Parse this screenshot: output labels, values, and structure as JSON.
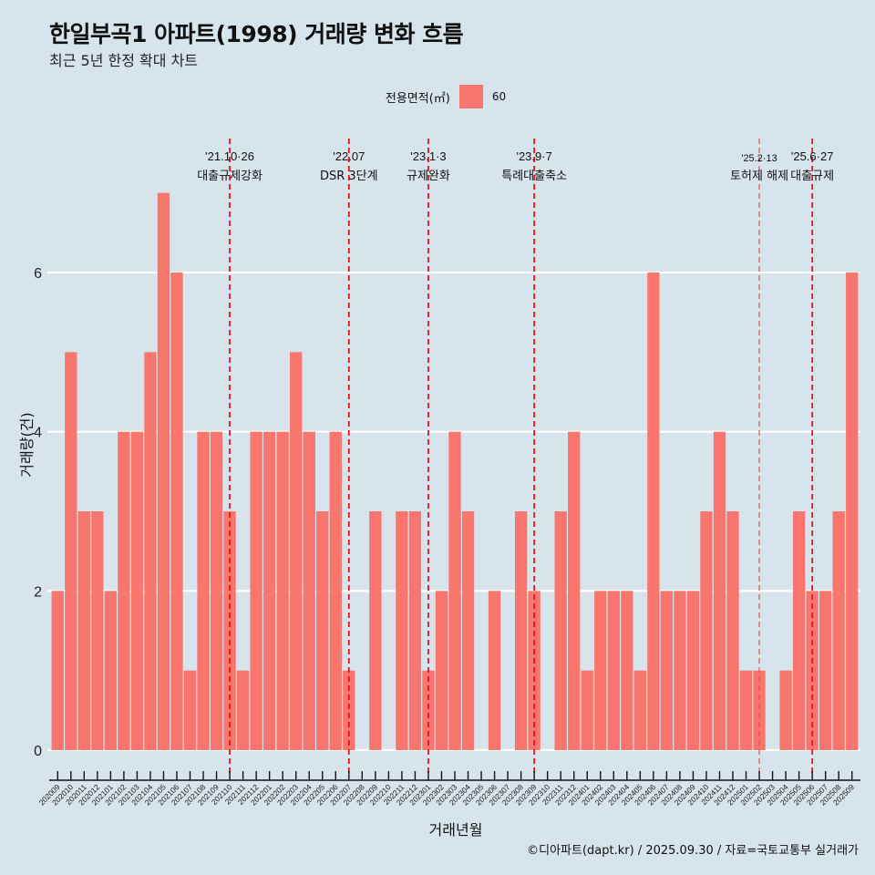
{
  "header": {
    "title": "한일부곡1 아파트(1998) 거래량 변화 흐름",
    "subtitle": "최근 5년 한정 확대 차트"
  },
  "legend": {
    "title": "전용면적(㎡)",
    "items": [
      {
        "label": "60",
        "color": "#f8766d"
      }
    ]
  },
  "caption": "©디아파트(dapt.kr) / 2025.09.30 / 자료=국토교통부 실거래가",
  "chart_data": {
    "type": "bar",
    "title": "한일부곡1 아파트(1998) 거래량 변화 흐름",
    "subtitle": "최근 5년 한정 확대 차트",
    "xlabel": "거래년월",
    "ylabel": "거래량(건)",
    "ylim": [
      0,
      7
    ],
    "yticks": [
      0,
      2,
      4,
      6
    ],
    "grid": true,
    "legend_position": "top",
    "bar_color": "#f8766d",
    "categories": [
      "202009",
      "202010",
      "202011",
      "202012",
      "202101",
      "202102",
      "202103",
      "202104",
      "202105",
      "202106",
      "202107",
      "202108",
      "202109",
      "202110",
      "202111",
      "202112",
      "202201",
      "202202",
      "202203",
      "202204",
      "202205",
      "202206",
      "202207",
      "202208",
      "202209",
      "202210",
      "202211",
      "202212",
      "202301",
      "202302",
      "202303",
      "202304",
      "202305",
      "202306",
      "202307",
      "202308",
      "202309",
      "202310",
      "202311",
      "202312",
      "202401",
      "202402",
      "202403",
      "202404",
      "202405",
      "202406",
      "202407",
      "202408",
      "202409",
      "202410",
      "202411",
      "202412",
      "202501",
      "202502",
      "202503",
      "202504",
      "202505",
      "202506",
      "202507",
      "202508",
      "202509"
    ],
    "series": [
      {
        "name": "60",
        "values": [
          2,
          5,
          3,
          3,
          2,
          4,
          4,
          5,
          7,
          6,
          1,
          4,
          4,
          3,
          1,
          4,
          4,
          4,
          5,
          4,
          3,
          4,
          1,
          0,
          3,
          0,
          3,
          3,
          1,
          2,
          4,
          3,
          0,
          2,
          0,
          3,
          2,
          0,
          3,
          4,
          1,
          2,
          2,
          2,
          1,
          6,
          2,
          2,
          2,
          3,
          4,
          3,
          1,
          1,
          0,
          1,
          3,
          2,
          2,
          3,
          6
        ]
      }
    ],
    "annotations": [
      {
        "category": "202110",
        "date": "'21.10·26",
        "label": "대출규제강화",
        "style": "bold"
      },
      {
        "category": "202207",
        "date": "'22.07",
        "label": "DSR 3단계",
        "style": "bold"
      },
      {
        "category": "202301",
        "date": "'23.1·3",
        "label": "규제완화",
        "style": "bold"
      },
      {
        "category": "202309",
        "date": "'23.9·7",
        "label": "특례대출축소",
        "style": "bold"
      },
      {
        "category": "202502",
        "date": "'25.2·13",
        "label": "토허제 해제",
        "style": "light"
      },
      {
        "category": "202506",
        "date": "'25.6·27",
        "label": "대출규제",
        "style": "bold"
      }
    ]
  }
}
